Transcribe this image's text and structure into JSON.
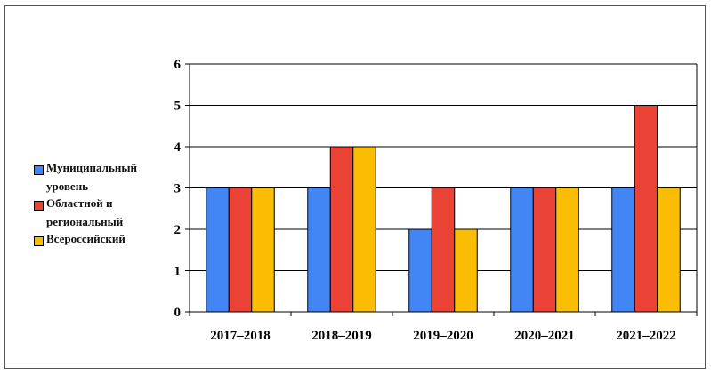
{
  "chart_data": {
    "type": "bar",
    "categories": [
      "2017–2018",
      "2018–2019",
      "2019–2020",
      "2020–2021",
      "2021–2022"
    ],
    "series": [
      {
        "name": "Муниципальный уровень",
        "values": [
          3,
          3,
          2,
          3,
          3
        ],
        "color": "#4285f4"
      },
      {
        "name": "Областной и региональный",
        "values": [
          3,
          4,
          3,
          3,
          5
        ],
        "color": "#ea4335"
      },
      {
        "name": "Всероссийский",
        "values": [
          3,
          4,
          2,
          3,
          3
        ],
        "color": "#fbbc04"
      }
    ],
    "y_ticks": [
      "0",
      "1",
      "2",
      "3",
      "4",
      "5",
      "6"
    ],
    "ylim": [
      0,
      6
    ],
    "grid": true,
    "legend_position": "left"
  }
}
